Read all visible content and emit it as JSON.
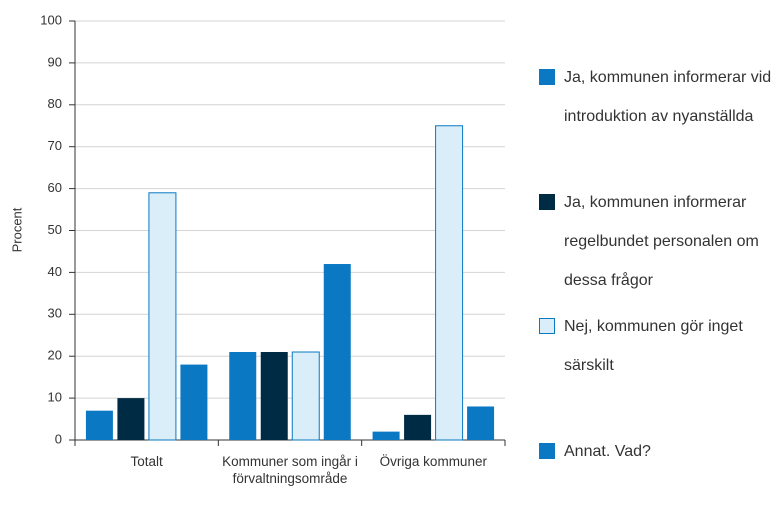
{
  "chart_data": {
    "type": "bar",
    "y_label": "Procent",
    "categories": [
      "Totalt",
      "Kommuner som ingår i förvaltningsområde",
      "Övriga kommuner"
    ],
    "series": [
      {
        "name": "Ja, kommunen informerar vid introduktion av nyanställda",
        "color": "#0a78c2",
        "values": [
          7,
          21,
          2
        ]
      },
      {
        "name": "Ja, kommunen informerar regelbundet personalen om dessa frågor",
        "color": "#002b45",
        "values": [
          10,
          21,
          6
        ]
      },
      {
        "name": "Nej, kommunen gör inget särskilt",
        "color": "#d9eef8",
        "border": "#0a78c2",
        "values": [
          59,
          21,
          75
        ]
      },
      {
        "name": "Annat. Vad?",
        "color": "#0a78c2",
        "values": [
          18,
          42,
          8
        ]
      }
    ],
    "ylim": [
      0,
      100
    ],
    "yticks": [
      0,
      10,
      20,
      30,
      40,
      50,
      60,
      70,
      80,
      90,
      100
    ],
    "grid": true
  }
}
